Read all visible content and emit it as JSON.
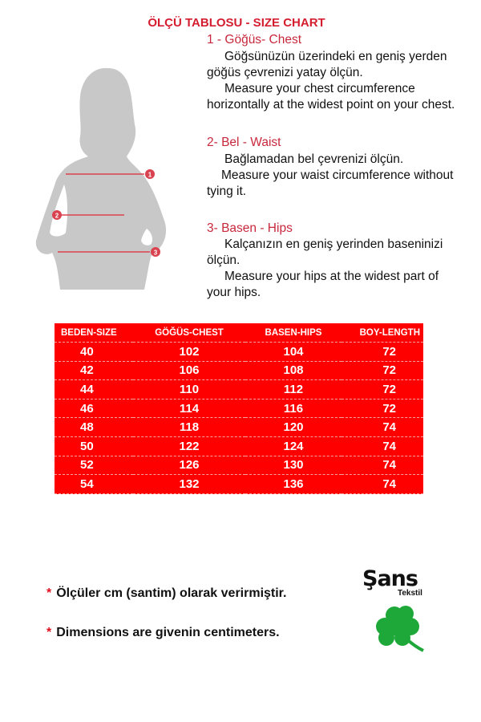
{
  "title": "ÖLÇÜ TABLOSU - SIZE CHART",
  "sections": [
    {
      "heading": "1 - Göğüs- Chest",
      "lines": [
        "Göğsünüzün üzerindeki en geniş yerden",
        "göğüs çevrenizi yatay ölçün.",
        "Measure your chest circumference",
        "horizontally at the widest point on your chest."
      ]
    },
    {
      "heading": "2- Bel - Waist",
      "lines": [
        "Bağlamadan bel çevrenizi ölçün.",
        "Measure your waist circumference without",
        "tying it."
      ]
    },
    {
      "heading": "3- Basen - Hips",
      "lines": [
        "Kalçanızın en geniş yerinden baseninizi",
        "ölçün.",
        "Measure your hips at the widest part of",
        "your hips."
      ]
    }
  ],
  "figure": {
    "markers": [
      "1",
      "2",
      "3"
    ],
    "marker_color": "#d9434f",
    "silhouette_color": "#c8c8c8"
  },
  "table": {
    "color": "#ff0000",
    "headers": [
      "BEDEN-SIZE",
      "GÖĞÜS-CHEST",
      "BASEN-HIPS",
      "BOY-LENGTH"
    ],
    "rows": [
      [
        "40",
        "102",
        "104",
        "72"
      ],
      [
        "42",
        "106",
        "108",
        "72"
      ],
      [
        "44",
        "110",
        "112",
        "72"
      ],
      [
        "46",
        "114",
        "116",
        "72"
      ],
      [
        "48",
        "118",
        "120",
        "74"
      ],
      [
        "50",
        "122",
        "124",
        "74"
      ],
      [
        "52",
        "126",
        "130",
        "74"
      ],
      [
        "54",
        "132",
        "136",
        "74"
      ]
    ]
  },
  "notes": [
    "Ölçüler  cm (santim) olarak verirmiştir.",
    "Dimensions are givenin centimeters."
  ],
  "note_marker": "*",
  "logo": {
    "name": "Şans",
    "sub": "Tekstil",
    "icon": "clover-icon",
    "icon_color": "#1fa83a"
  }
}
